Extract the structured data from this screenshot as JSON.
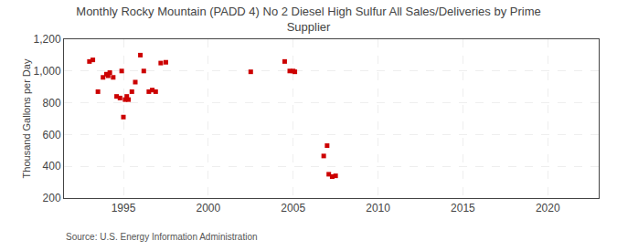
{
  "chart_data": {
    "type": "scatter",
    "title": "Monthly Rocky Mountain (PADD 4) No 2 Diesel High Sulfur All Sales/Deliveries by Prime\nSupplier",
    "ylabel": "Thousand Gallons per Day",
    "annotations": [
      "Source: U.S. Energy Information Administration"
    ],
    "color": "#cc0000",
    "marker": "square",
    "grid": true,
    "xlim": [
      1991.5,
      2023
    ],
    "ylim": [
      200,
      1200
    ],
    "xticks": [
      1995,
      2000,
      2005,
      2010,
      2015,
      2020
    ],
    "yticks": [
      200,
      400,
      600,
      800,
      {
        "value": 1000,
        "label": "1,000"
      },
      {
        "value": 1200,
        "label": "1,200"
      }
    ],
    "x": [
      1993.0,
      1993.2,
      1993.5,
      1993.8,
      1994.0,
      1994.1,
      1994.2,
      1994.4,
      1994.6,
      1994.8,
      1994.9,
      1995.0,
      1995.1,
      1995.2,
      1995.3,
      1995.5,
      1995.7,
      1996.0,
      1996.2,
      1996.5,
      1996.7,
      1996.9,
      1997.2,
      1997.5,
      2002.5,
      2004.5,
      2004.8,
      2005.0,
      2005.1,
      2006.8,
      2007.0,
      2007.1,
      2007.3,
      2007.5
    ],
    "values": [
      1060,
      1070,
      870,
      960,
      980,
      970,
      990,
      960,
      840,
      830,
      1000,
      710,
      820,
      840,
      820,
      870,
      930,
      1100,
      1000,
      870,
      880,
      870,
      1050,
      1055,
      995,
      1060,
      1000,
      1000,
      995,
      465,
      530,
      350,
      335,
      340
    ]
  }
}
